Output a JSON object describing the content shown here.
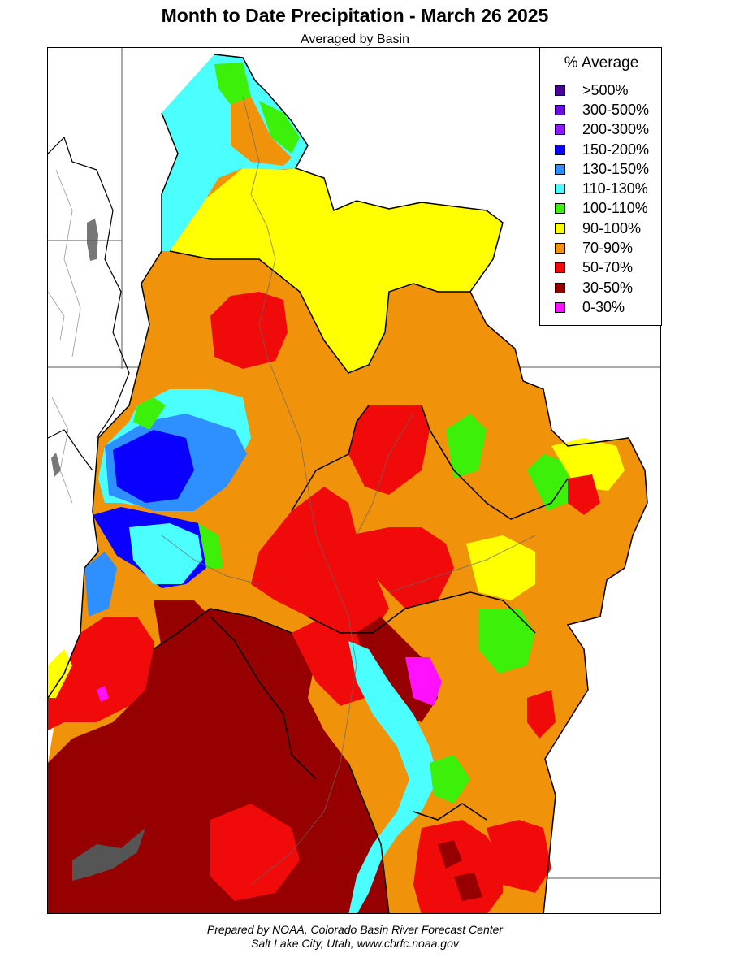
{
  "title": "Month to Date Precipitation - March 26 2025",
  "subtitle": "Averaged by Basin",
  "legend": {
    "title": "% Average",
    "items": [
      {
        "label": ">500%",
        "color": "#4b0096"
      },
      {
        "label": "300-500%",
        "color": "#6a10d8"
      },
      {
        "label": "200-300%",
        "color": "#8c1cff"
      },
      {
        "label": "150-200%",
        "color": "#0a00ff"
      },
      {
        "label": "130-150%",
        "color": "#2e90ff"
      },
      {
        "label": "110-130%",
        "color": "#4cffff"
      },
      {
        "label": "100-110%",
        "color": "#3cf00a"
      },
      {
        "label": "90-100%",
        "color": "#ffff00"
      },
      {
        "label": "70-90%",
        "color": "#f0920a"
      },
      {
        "label": "50-70%",
        "color": "#f00a0a"
      },
      {
        "label": "30-50%",
        "color": "#960000"
      },
      {
        "label": "0-30%",
        "color": "#ff10ff"
      }
    ]
  },
  "footer": {
    "line1": "Prepared by NOAA, Colorado Basin River Forecast Center",
    "line2": "Salt Lake City, Utah, www.cbrfc.noaa.gov"
  }
}
